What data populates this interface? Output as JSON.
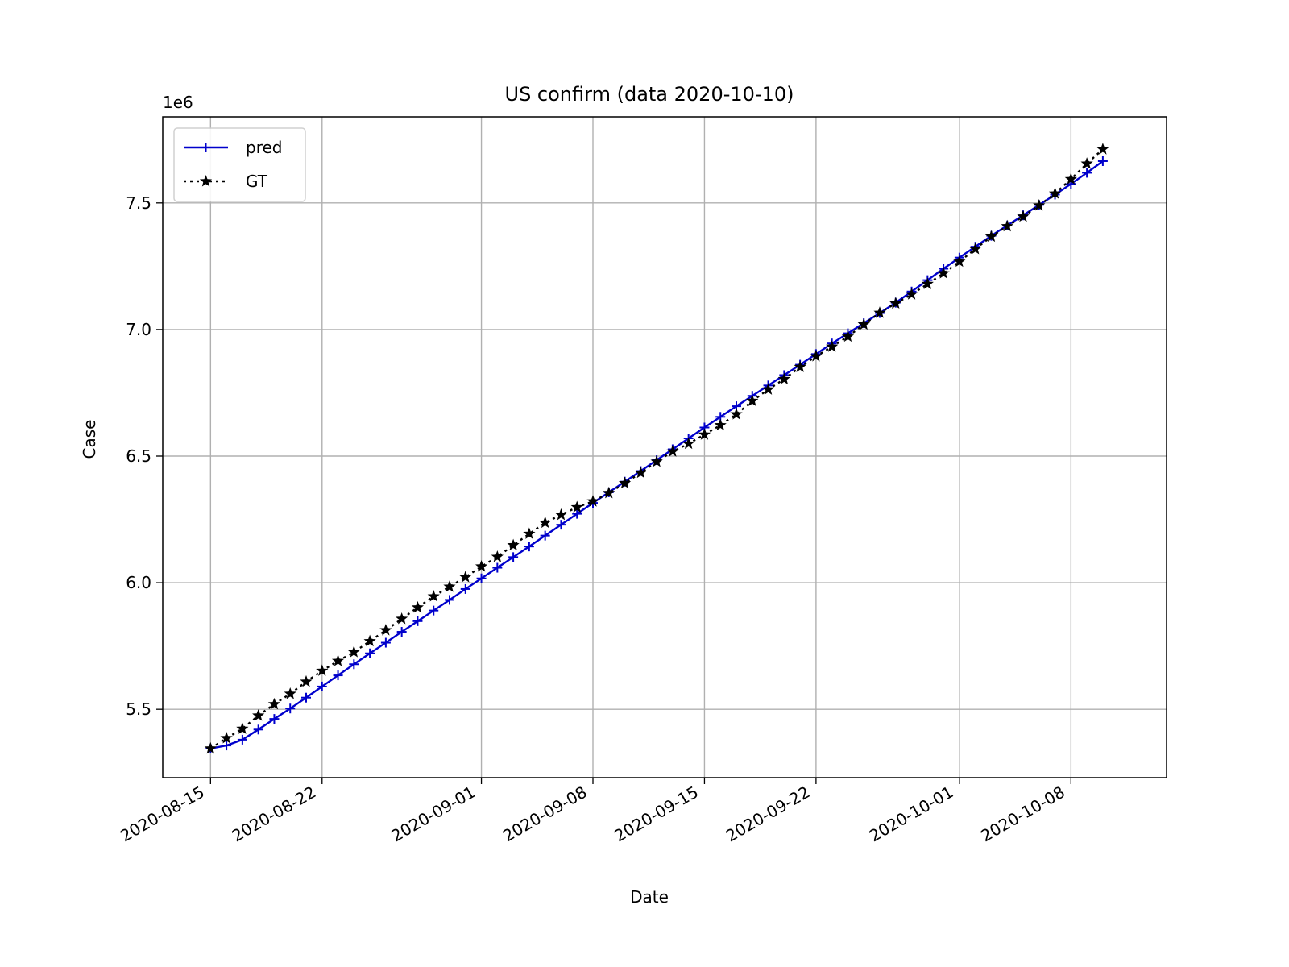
{
  "chart_data": {
    "type": "line",
    "title": "US confirm (data 2020-10-10)",
    "xlabel": "Date",
    "ylabel": "Case",
    "y_offset_label": "1e6",
    "y_multiplier": 1000000,
    "xlim": [
      "2020-08-12",
      "2020-10-14"
    ],
    "ylim": [
      5.23,
      7.84
    ],
    "x_ticks": [
      "2020-08-15",
      "2020-08-22",
      "2020-09-01",
      "2020-09-08",
      "2020-09-15",
      "2020-09-22",
      "2020-10-01",
      "2020-10-08"
    ],
    "y_ticks": [
      5.5,
      6.0,
      6.5,
      7.0,
      7.5
    ],
    "grid": true,
    "legend_position": "upper-left",
    "x": [
      "2020-08-15",
      "2020-08-16",
      "2020-08-17",
      "2020-08-18",
      "2020-08-19",
      "2020-08-20",
      "2020-08-21",
      "2020-08-22",
      "2020-08-23",
      "2020-08-24",
      "2020-08-25",
      "2020-08-26",
      "2020-08-27",
      "2020-08-28",
      "2020-08-29",
      "2020-08-30",
      "2020-08-31",
      "2020-09-01",
      "2020-09-02",
      "2020-09-03",
      "2020-09-04",
      "2020-09-05",
      "2020-09-06",
      "2020-09-07",
      "2020-09-08",
      "2020-09-09",
      "2020-09-10",
      "2020-09-11",
      "2020-09-12",
      "2020-09-13",
      "2020-09-14",
      "2020-09-15",
      "2020-09-16",
      "2020-09-17",
      "2020-09-18",
      "2020-09-19",
      "2020-09-20",
      "2020-09-21",
      "2020-09-22",
      "2020-09-23",
      "2020-09-24",
      "2020-09-25",
      "2020-09-26",
      "2020-09-27",
      "2020-09-28",
      "2020-09-29",
      "2020-09-30",
      "2020-10-01",
      "2020-10-02",
      "2020-10-03",
      "2020-10-04",
      "2020-10-05",
      "2020-10-06",
      "2020-10-07",
      "2020-10-08",
      "2020-10-09",
      "2020-10-10"
    ],
    "series": [
      {
        "name": "pred",
        "color": "#0000cc",
        "line_style": "solid",
        "marker": "plus",
        "values": [
          5.345,
          5.357,
          5.38,
          5.42,
          5.462,
          5.503,
          5.546,
          5.59,
          5.634,
          5.678,
          5.721,
          5.763,
          5.806,
          5.848,
          5.89,
          5.932,
          5.975,
          6.017,
          6.059,
          6.101,
          6.143,
          6.186,
          6.229,
          6.272,
          6.315,
          6.357,
          6.399,
          6.441,
          6.484,
          6.527,
          6.57,
          6.613,
          6.655,
          6.697,
          6.738,
          6.779,
          6.82,
          6.861,
          6.903,
          6.945,
          6.985,
          7.025,
          7.065,
          7.106,
          7.15,
          7.195,
          7.24,
          7.284,
          7.327,
          7.37,
          7.411,
          7.451,
          7.492,
          7.533,
          7.575,
          7.619,
          7.665
        ]
      },
      {
        "name": "GT",
        "color": "#000000",
        "line_style": "dotted",
        "marker": "star",
        "values": [
          5.345,
          5.386,
          5.423,
          5.475,
          5.52,
          5.561,
          5.609,
          5.652,
          5.691,
          5.726,
          5.769,
          5.812,
          5.857,
          5.902,
          5.946,
          5.984,
          6.022,
          6.064,
          6.102,
          6.148,
          6.193,
          6.237,
          6.268,
          6.298,
          6.321,
          6.354,
          6.393,
          6.434,
          6.478,
          6.518,
          6.549,
          6.585,
          6.622,
          6.665,
          6.718,
          6.763,
          6.804,
          6.852,
          6.894,
          6.932,
          6.972,
          7.02,
          7.066,
          7.103,
          7.139,
          7.18,
          7.222,
          7.268,
          7.318,
          7.367,
          7.408,
          7.446,
          7.49,
          7.537,
          7.594,
          7.655,
          7.712
        ]
      }
    ]
  }
}
